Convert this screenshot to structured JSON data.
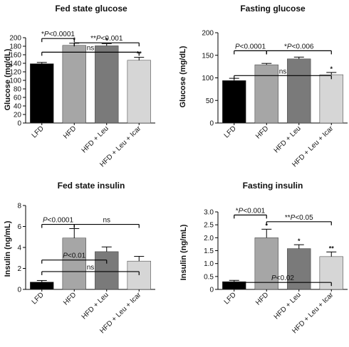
{
  "chart_data": [
    {
      "type": "bar",
      "title": "Fed state glucose",
      "ylabel": "Glucose (mg/dL)",
      "ylim": [
        0,
        200
      ],
      "yticks": [
        "0",
        "20",
        "40",
        "60",
        "80",
        "100",
        "120",
        "140",
        "160",
        "180",
        "200"
      ],
      "categories": [
        "LFD",
        "HFD",
        "HFD + Leu",
        "HFD + Leu + Icar"
      ],
      "values": [
        139,
        182,
        181,
        147
      ],
      "errors": [
        3,
        5,
        5,
        7
      ],
      "colors": [
        "#000000",
        "#a6a6a6",
        "#7a7a7a",
        "#d6d6d6"
      ],
      "stars": [
        "",
        "*",
        "*",
        "**"
      ],
      "comparisons": [
        {
          "from": 0,
          "to": 1,
          "y": 198,
          "label": "*P<0.0001"
        },
        {
          "from": 1,
          "to": 3,
          "y": 188,
          "label": "**P<0.001"
        },
        {
          "from": 0,
          "to": 3,
          "y": 166,
          "label": "ns"
        }
      ]
    },
    {
      "type": "bar",
      "title": "Fasting glucose",
      "ylabel": "Glucose (mg/dL)",
      "ylim": [
        0,
        200
      ],
      "yticks": [
        "0",
        "50",
        "100",
        "150",
        "200"
      ],
      "categories": [
        "LFD",
        "HFD",
        "HFD + Leu",
        "HFD + Leu + Icar"
      ],
      "values": [
        94,
        129,
        142,
        107
      ],
      "errors": [
        5,
        3,
        4,
        5
      ],
      "colors": [
        "#000000",
        "#a6a6a6",
        "#7a7a7a",
        "#d6d6d6"
      ],
      "stars": [
        "",
        "",
        "",
        "*"
      ],
      "comparisons": [
        {
          "from": 0,
          "to": 1,
          "y": 160,
          "label": "P<0.0001"
        },
        {
          "from": 1,
          "to": 3,
          "y": 160,
          "label": "*P<0.006"
        },
        {
          "from": 0,
          "to": 3,
          "y": 105,
          "label": "ns"
        }
      ]
    },
    {
      "type": "bar",
      "title": "Fed state insulin",
      "ylabel": "Insulin (ng/mL)",
      "ylim": [
        0,
        8
      ],
      "yticks": [
        "0",
        "2",
        "4",
        "6",
        "8"
      ],
      "categories": [
        "LFD",
        "HFD",
        "HFD + Leu",
        "HFD + Leu + Icar"
      ],
      "values": [
        0.7,
        4.9,
        3.6,
        2.7
      ],
      "errors": [
        0.15,
        0.9,
        0.45,
        0.45
      ],
      "colors": [
        "#000000",
        "#a6a6a6",
        "#7a7a7a",
        "#d6d6d6"
      ],
      "stars": [
        "",
        "",
        "",
        ""
      ],
      "comparisons": [
        {
          "from": 0,
          "to": 1,
          "y": 6.2,
          "label": "P<0.0001"
        },
        {
          "from": 1,
          "to": 3,
          "y": 6.2,
          "label": "ns"
        },
        {
          "from": 0,
          "to": 2,
          "y": 2.8,
          "label": "P<0.01"
        },
        {
          "from": 0,
          "to": 3,
          "y": 1.7,
          "label": "ns"
        }
      ]
    },
    {
      "type": "bar",
      "title": "Fasting insulin",
      "ylabel": "Insulin (ng/mL)",
      "ylim": [
        0,
        3.0
      ],
      "yticks": [
        "0",
        "0.5",
        "1.0",
        "1.5",
        "2.0",
        "2.5",
        "3.0"
      ],
      "categories": [
        "LFD",
        "HFD",
        "HFD + Leu",
        "HFD + Leu + Icar"
      ],
      "values": [
        0.3,
        2.0,
        1.58,
        1.27
      ],
      "errors": [
        0.05,
        0.33,
        0.15,
        0.18
      ],
      "colors": [
        "#000000",
        "#a6a6a6",
        "#7a7a7a",
        "#d6d6d6"
      ],
      "stars": [
        "",
        "*",
        "*",
        "**"
      ],
      "comparisons": [
        {
          "from": 0,
          "to": 1,
          "y": 2.88,
          "label": "*P<0.001"
        },
        {
          "from": 1,
          "to": 3,
          "y": 2.62,
          "label": "**P<0.05"
        },
        {
          "from": 0,
          "to": 3,
          "y": 0.27,
          "label": "P<0.02"
        }
      ]
    }
  ]
}
